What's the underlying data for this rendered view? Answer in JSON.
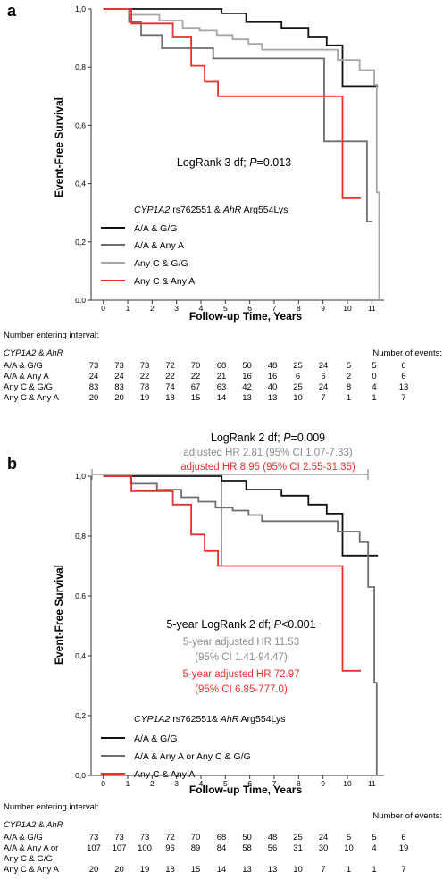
{
  "chart_data": [
    {
      "panel_label": "a",
      "type": "line",
      "step": true,
      "ylabel": "Event-Free Survival",
      "xlabel": "Follow-up Time, Years",
      "xlim": [
        -0.5,
        11.5
      ],
      "ylim": [
        0.0,
        1.0
      ],
      "x_ticks": [
        "0",
        "1",
        "2",
        "3",
        "4",
        "5",
        "6",
        "7",
        "8",
        "9",
        "10",
        "11"
      ],
      "y_ticks": [
        "0,0",
        "0,2",
        "0,4",
        "0,6",
        "0,8",
        "1,0"
      ],
      "annotation": {
        "prefix": "LogRank 3 df; ",
        "p_label": "P",
        "p_value": "=0.013"
      },
      "legend": {
        "gene1": "CYP1A2",
        "snp1": " rs762551 & ",
        "gene2": "AhR",
        "snp2": " Arg554Lys",
        "entries": [
          "A/A & G/G",
          "A/A & Any A",
          "Any C & G/G",
          "Any C & Any A"
        ]
      },
      "series": [
        {
          "name": "A/A & G/G",
          "color": "#111111",
          "x": [
            0,
            4.85,
            5.85,
            7.3,
            8.4,
            9.15,
            9.8,
            11.25
          ],
          "y": [
            1.0,
            0.985,
            0.955,
            0.935,
            0.905,
            0.875,
            0.735,
            0.735
          ]
        },
        {
          "name": "A/A & Any A",
          "color": "#6e6e6e",
          "x": [
            0,
            1.05,
            1.55,
            2.4,
            3.4,
            3.85,
            4.5,
            9.05,
            10.1,
            10.8,
            11.0
          ],
          "y": [
            1.0,
            0.955,
            0.91,
            0.865,
            0.865,
            0.865,
            0.83,
            0.545,
            0.545,
            0.27,
            0.27
          ]
        },
        {
          "name": "Any C & G/G",
          "color": "#a6a6a6",
          "x": [
            0,
            1.1,
            2.3,
            3.25,
            3.95,
            4.65,
            5.3,
            5.95,
            6.5,
            9.0,
            9.6,
            10.5,
            11.1,
            11.2,
            11.3
          ],
          "y": [
            1.0,
            0.98,
            0.96,
            0.935,
            0.925,
            0.91,
            0.895,
            0.88,
            0.86,
            0.86,
            0.825,
            0.79,
            0.74,
            0.37,
            0.0
          ]
        },
        {
          "name": "Any C & Any A",
          "color": "#e8302e",
          "x": [
            0,
            1.15,
            2.15,
            2.85,
            3.6,
            4.15,
            4.7,
            9.8,
            10.55
          ],
          "y": [
            1.0,
            0.95,
            0.95,
            0.905,
            0.805,
            0.75,
            0.7,
            0.35,
            0.35
          ]
        }
      ]
    },
    {
      "panel_label": "b",
      "type": "line",
      "step": true,
      "ylabel": "Event-Free Survival",
      "xlabel": "Follow-up Time, Years",
      "xlim": [
        -0.5,
        11.5
      ],
      "ylim": [
        0.0,
        1.0
      ],
      "x_ticks": [
        "0",
        "1",
        "2",
        "3",
        "4",
        "5",
        "6",
        "7",
        "8",
        "9",
        "10",
        "11"
      ],
      "y_ticks": [
        "0,0",
        "0,2",
        "0,4",
        "0,6",
        "0,8",
        "1,0"
      ],
      "annotations": {
        "overall_prefix": "LogRank 2 df; ",
        "overall_p_label": "P",
        "overall_p_value": "=0.009",
        "adj_hr_gray": "adjusted HR 2.81 (95% CI 1.07-7.33)",
        "adj_hr_red": "adjusted HR 8.95 (95% CI 2.55-31.35)",
        "five_prefix": "5-year LogRank 2 df; ",
        "five_p_label": "P",
        "five_p_value": "<0.001",
        "five_hr_gray_1": "5-year adjusted HR 11.53",
        "five_hr_gray_2": "(95% CI 1.41-94.47)",
        "five_hr_red_1": "5-year adjusted HR 72.97",
        "five_hr_red_2": "(95% CI 6.85-777.0)"
      },
      "legend": {
        "gene1": "CYP1A2",
        "snp1": " rs762551& ",
        "gene2": "AhR",
        "snp2": " Arg554Lys",
        "entries": [
          "A/A & G/G",
          "A/A & Any A or Any C & G/G",
          "Any C & Any A"
        ]
      },
      "series": [
        {
          "name": "A/A & G/G",
          "color": "#111111",
          "x": [
            0,
            4.85,
            5.85,
            7.3,
            8.4,
            9.15,
            9.8,
            11.25
          ],
          "y": [
            1.0,
            0.985,
            0.955,
            0.935,
            0.905,
            0.875,
            0.735,
            0.735
          ]
        },
        {
          "name": "A/A & Any A or Any C & G/G",
          "color": "#6e6e6e",
          "x": [
            0,
            1.1,
            2.2,
            3.2,
            3.9,
            4.6,
            5.3,
            5.95,
            6.5,
            9.0,
            9.6,
            10.5,
            10.85,
            11.1,
            11.2
          ],
          "y": [
            1.0,
            0.975,
            0.955,
            0.93,
            0.915,
            0.895,
            0.885,
            0.87,
            0.85,
            0.85,
            0.815,
            0.78,
            0.63,
            0.31,
            0.0
          ]
        },
        {
          "name": "Any C & Any A",
          "color": "#e8302e",
          "x": [
            0,
            1.15,
            2.15,
            2.85,
            3.6,
            4.15,
            4.7,
            9.8,
            10.55
          ],
          "y": [
            1.0,
            0.95,
            0.95,
            0.905,
            0.805,
            0.75,
            0.7,
            0.35,
            0.35
          ]
        }
      ]
    }
  ],
  "tables": [
    {
      "title": "Number entering interval:",
      "header_gene1": "CYP1A2",
      "header_amp": " & ",
      "header_gene2": "AhR",
      "events_header": "Number of events:",
      "rows": [
        {
          "label": "A/A & G/G",
          "values": [
            "73",
            "73",
            "73",
            "72",
            "70",
            "68",
            "50",
            "48",
            "25",
            "24",
            "5",
            "5"
          ],
          "events": "6"
        },
        {
          "label": "A/A & Any A",
          "values": [
            "24",
            "24",
            "22",
            "22",
            "22",
            "21",
            "16",
            "16",
            "6",
            "6",
            "2",
            "0"
          ],
          "events": "6"
        },
        {
          "label": "Any C & G/G",
          "values": [
            "83",
            "83",
            "78",
            "74",
            "67",
            "63",
            "42",
            "40",
            "25",
            "24",
            "8",
            "4"
          ],
          "events": "13"
        },
        {
          "label": "Any C & Any A",
          "values": [
            "20",
            "20",
            "19",
            "18",
            "15",
            "14",
            "13",
            "13",
            "10",
            "7",
            "1",
            "1"
          ],
          "events": "7"
        }
      ]
    },
    {
      "title": "Number entering interval:",
      "header_gene1": "CYP1A2",
      "header_amp": " & ",
      "header_gene2": "AhR",
      "events_header": "Number of events:",
      "rows": [
        {
          "label": "A/A & G/G",
          "values": [
            "73",
            "73",
            "73",
            "72",
            "70",
            "68",
            "50",
            "48",
            "25",
            "24",
            "5",
            "5"
          ],
          "events": "6"
        },
        {
          "label": "A/A & Any A or",
          "label2": "Any C & G/G",
          "values": [
            "107",
            "107",
            "100",
            "96",
            "89",
            "84",
            "58",
            "56",
            "31",
            "30",
            "10",
            "4"
          ],
          "events": "19"
        },
        {
          "label": "Any C & Any A",
          "values": [
            "20",
            "20",
            "19",
            "18",
            "15",
            "14",
            "13",
            "13",
            "10",
            "7",
            "1",
            "1"
          ],
          "events": "7"
        }
      ]
    }
  ]
}
